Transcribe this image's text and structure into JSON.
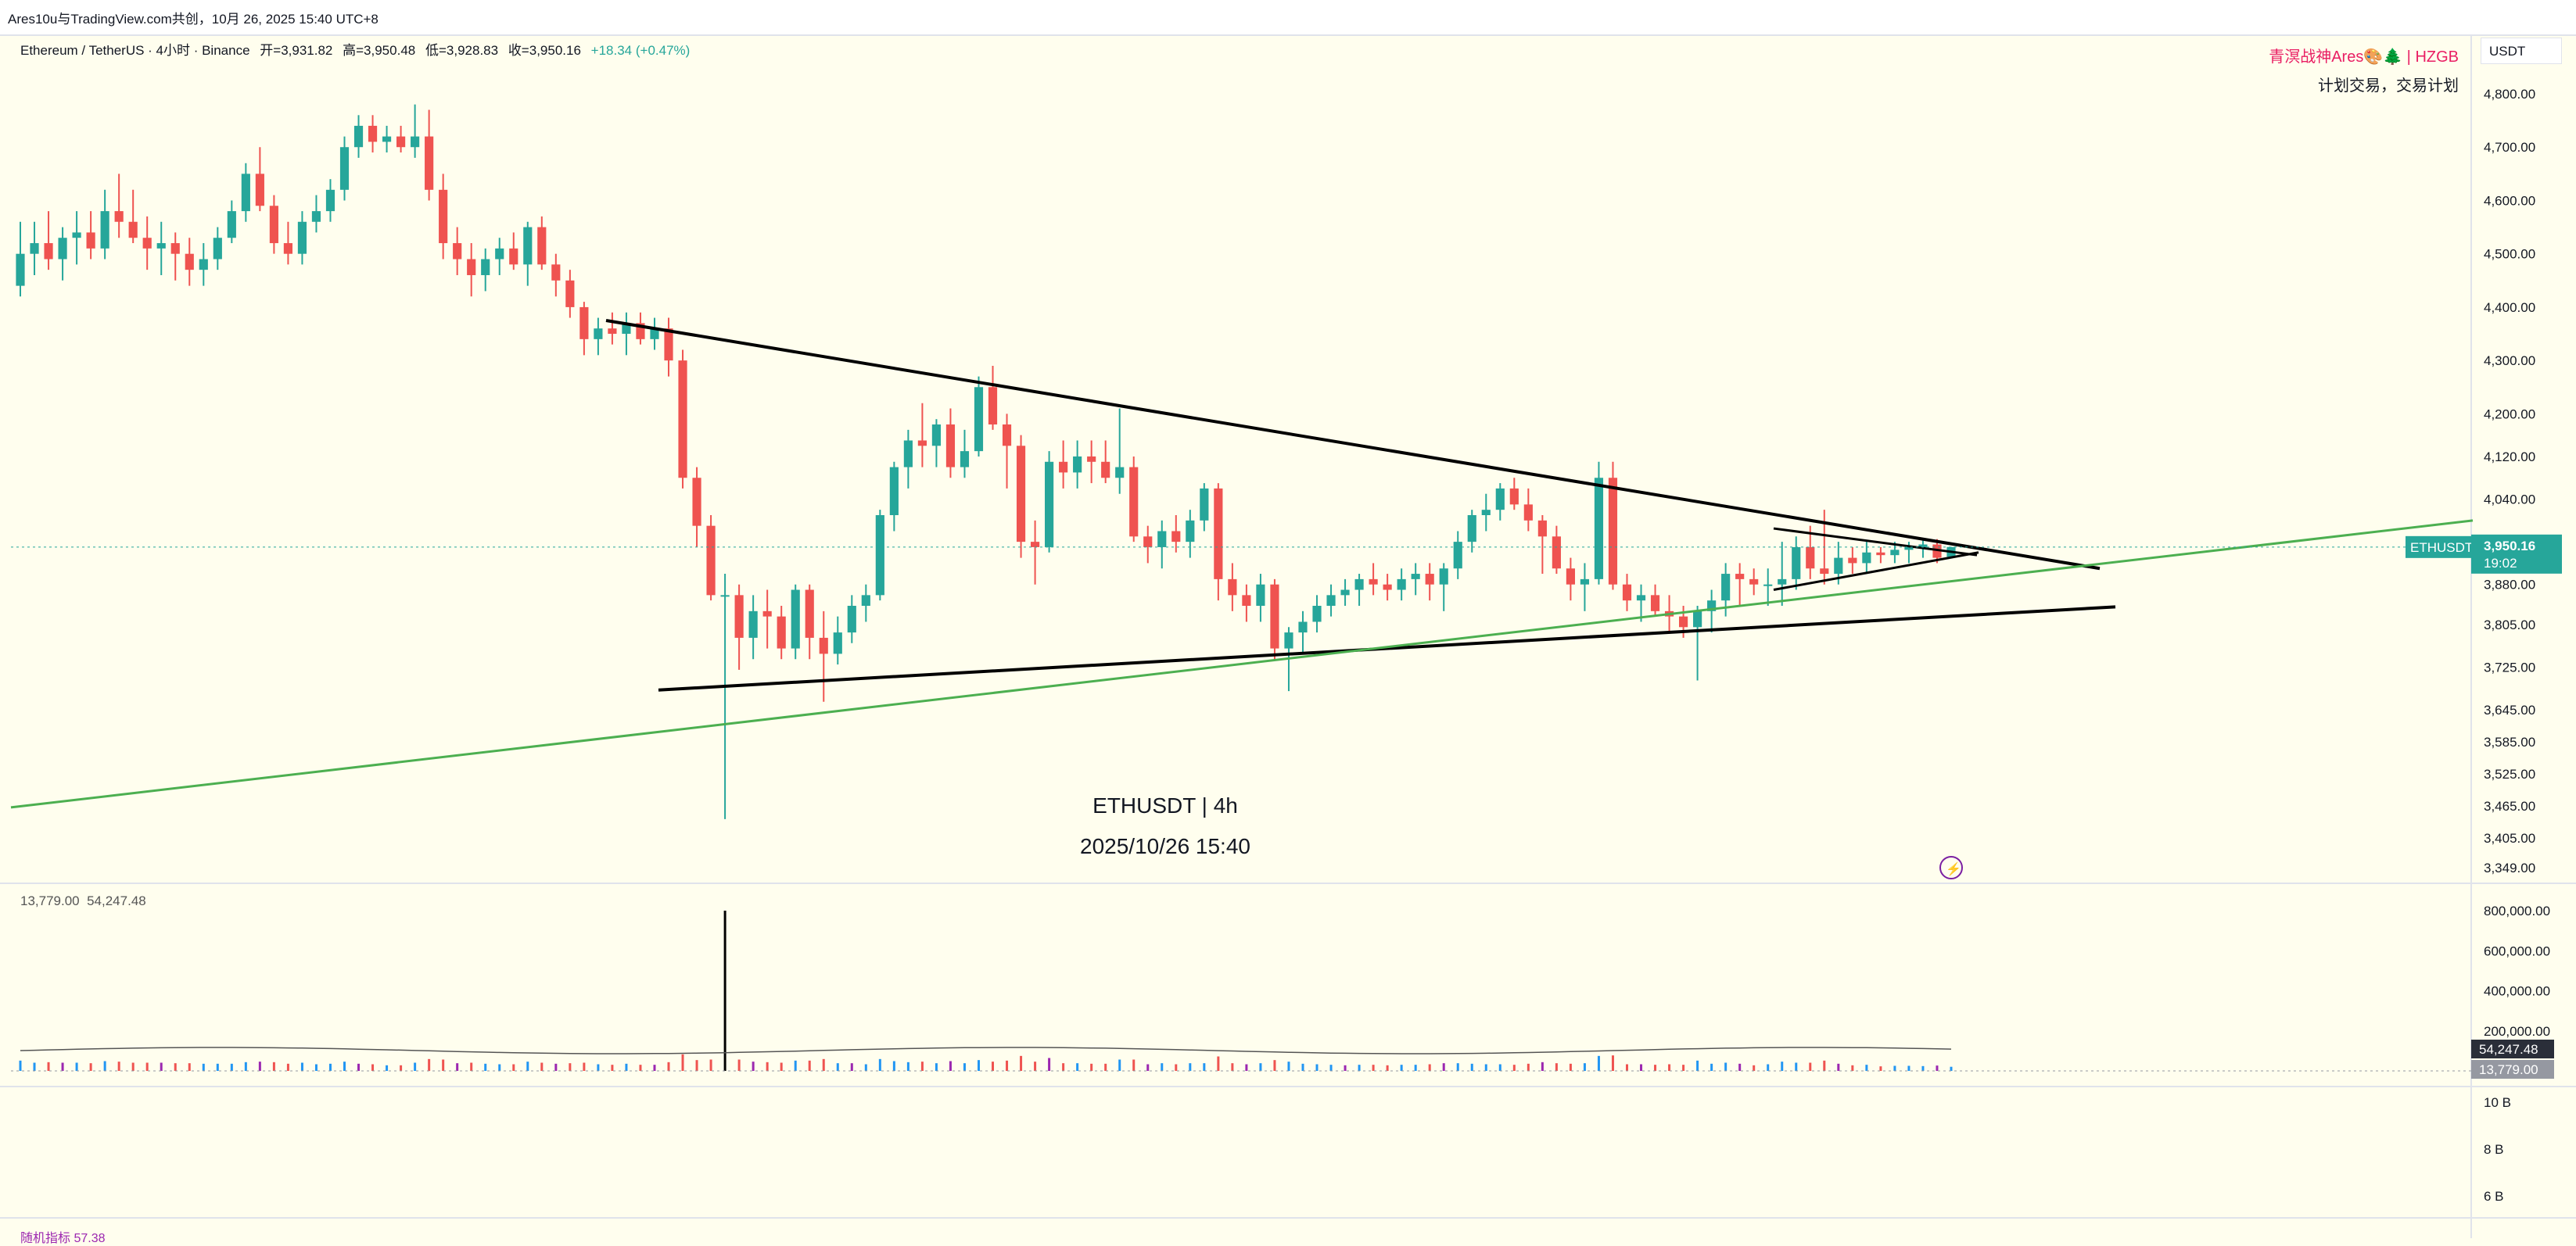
{
  "share_text": "Ares10u与TradingView.com共创，10月 26, 2025 15:40 UTC+8",
  "legend": {
    "symbol": "Ethereum / TetherUS · 4小时 · Binance",
    "open": "开=3,931.82",
    "high": "高=3,950.48",
    "low": "低=3,928.83",
    "close": "收=3,950.16",
    "change": "+18.34 (+0.47%)"
  },
  "badge": {
    "line1": "青溟战神Ares🎨🌲 | HZGB",
    "line2": "计划交易，交易计划"
  },
  "center": {
    "title": "ETHUSDT | 4h",
    "date": "2025/10/26 15:40"
  },
  "volume_legend": {
    "v1": "13,779.00",
    "v2": "54,247.48"
  },
  "bottom_legend": "随机指标 57.38",
  "price_axis": {
    "currency": "USDT",
    "ticks": [
      "4,800.00",
      "4,700.00",
      "4,600.00",
      "4,500.00",
      "4,400.00",
      "4,300.00",
      "4,200.00",
      "4,120.00",
      "4,040.00",
      "3,880.00",
      "3,805.00",
      "3,725.00",
      "3,645.00",
      "3,585.00",
      "3,525.00",
      "3,465.00",
      "3,405.00",
      "3,349.00"
    ],
    "last_symbol": "ETHUSDT",
    "last_price": "3,950.16",
    "countdown": "19:02"
  },
  "volume_axis": {
    "ticks": [
      "800,000.00",
      "600,000.00",
      "400,000.00",
      "200,000.00"
    ],
    "ma_value": "54,247.48",
    "last_value": "13,779.00"
  },
  "oscillator_axis": {
    "ticks": [
      "10 B",
      "8 B",
      "6 B"
    ]
  },
  "colors": {
    "up": "#26a69a",
    "down": "#ef5350",
    "trend_green": "#4caf50",
    "lines": "#000000",
    "bg": "#fffeee",
    "badge": "#e91e63"
  },
  "chart_data": {
    "type": "candlestick",
    "symbol": "ETHUSDT",
    "timeframe": "4h",
    "ylim": [
      3349,
      4850
    ],
    "candles": [
      [
        4440,
        4560,
        4420,
        4500
      ],
      [
        4500,
        4560,
        4460,
        4520
      ],
      [
        4520,
        4580,
        4470,
        4490
      ],
      [
        4490,
        4550,
        4450,
        4530
      ],
      [
        4530,
        4580,
        4480,
        4540
      ],
      [
        4540,
        4580,
        4490,
        4510
      ],
      [
        4510,
        4620,
        4490,
        4580
      ],
      [
        4580,
        4650,
        4530,
        4560
      ],
      [
        4560,
        4620,
        4520,
        4530
      ],
      [
        4530,
        4570,
        4470,
        4510
      ],
      [
        4510,
        4560,
        4460,
        4520
      ],
      [
        4520,
        4540,
        4450,
        4500
      ],
      [
        4500,
        4530,
        4440,
        4470
      ],
      [
        4470,
        4520,
        4440,
        4490
      ],
      [
        4490,
        4550,
        4470,
        4530
      ],
      [
        4530,
        4600,
        4520,
        4580
      ],
      [
        4580,
        4670,
        4560,
        4650
      ],
      [
        4650,
        4700,
        4580,
        4590
      ],
      [
        4590,
        4610,
        4500,
        4520
      ],
      [
        4520,
        4560,
        4480,
        4500
      ],
      [
        4500,
        4580,
        4480,
        4560
      ],
      [
        4560,
        4610,
        4540,
        4580
      ],
      [
        4580,
        4640,
        4560,
        4620
      ],
      [
        4620,
        4720,
        4600,
        4700
      ],
      [
        4700,
        4760,
        4680,
        4740
      ],
      [
        4740,
        4760,
        4690,
        4710
      ],
      [
        4710,
        4740,
        4690,
        4720
      ],
      [
        4720,
        4740,
        4690,
        4700
      ],
      [
        4700,
        4780,
        4680,
        4720
      ],
      [
        4720,
        4770,
        4600,
        4620
      ],
      [
        4620,
        4650,
        4490,
        4520
      ],
      [
        4520,
        4550,
        4460,
        4490
      ],
      [
        4490,
        4520,
        4420,
        4460
      ],
      [
        4460,
        4510,
        4430,
        4490
      ],
      [
        4490,
        4530,
        4460,
        4510
      ],
      [
        4510,
        4540,
        4470,
        4480
      ],
      [
        4480,
        4560,
        4440,
        4550
      ],
      [
        4550,
        4570,
        4470,
        4480
      ],
      [
        4480,
        4500,
        4420,
        4450
      ],
      [
        4450,
        4470,
        4380,
        4400
      ],
      [
        4400,
        4410,
        4310,
        4340
      ],
      [
        4340,
        4380,
        4310,
        4360
      ],
      [
        4360,
        4390,
        4330,
        4350
      ],
      [
        4350,
        4390,
        4310,
        4370
      ],
      [
        4370,
        4390,
        4330,
        4340
      ],
      [
        4340,
        4380,
        4320,
        4360
      ],
      [
        4360,
        4380,
        4270,
        4300
      ],
      [
        4300,
        4320,
        4060,
        4080
      ],
      [
        4080,
        4100,
        3950,
        3990
      ],
      [
        3990,
        4010,
        3850,
        3860
      ],
      [
        3860,
        3900,
        3440,
        3860
      ],
      [
        3860,
        3880,
        3720,
        3780
      ],
      [
        3780,
        3860,
        3740,
        3830
      ],
      [
        3830,
        3870,
        3760,
        3820
      ],
      [
        3820,
        3840,
        3740,
        3760
      ],
      [
        3760,
        3880,
        3740,
        3870
      ],
      [
        3870,
        3880,
        3740,
        3780
      ],
      [
        3780,
        3830,
        3660,
        3750
      ],
      [
        3750,
        3820,
        3730,
        3790
      ],
      [
        3790,
        3860,
        3770,
        3840
      ],
      [
        3840,
        3880,
        3810,
        3860
      ],
      [
        3860,
        4020,
        3850,
        4010
      ],
      [
        4010,
        4110,
        3980,
        4100
      ],
      [
        4100,
        4170,
        4060,
        4150
      ],
      [
        4150,
        4220,
        4100,
        4140
      ],
      [
        4140,
        4190,
        4100,
        4180
      ],
      [
        4180,
        4210,
        4080,
        4100
      ],
      [
        4100,
        4170,
        4080,
        4130
      ],
      [
        4130,
        4270,
        4120,
        4250
      ],
      [
        4250,
        4290,
        4170,
        4180
      ],
      [
        4180,
        4200,
        4060,
        4140
      ],
      [
        4140,
        4160,
        3930,
        3960
      ],
      [
        3960,
        4000,
        3880,
        3950
      ],
      [
        3950,
        4130,
        3940,
        4110
      ],
      [
        4110,
        4150,
        4060,
        4090
      ],
      [
        4090,
        4150,
        4060,
        4120
      ],
      [
        4120,
        4150,
        4070,
        4110
      ],
      [
        4110,
        4150,
        4070,
        4080
      ],
      [
        4080,
        4210,
        4050,
        4100
      ],
      [
        4100,
        4120,
        3960,
        3970
      ],
      [
        3970,
        3990,
        3920,
        3950
      ],
      [
        3950,
        4000,
        3910,
        3980
      ],
      [
        3980,
        4010,
        3940,
        3960
      ],
      [
        3960,
        4020,
        3930,
        4000
      ],
      [
        4000,
        4070,
        3980,
        4060
      ],
      [
        4060,
        4070,
        3850,
        3890
      ],
      [
        3890,
        3920,
        3830,
        3860
      ],
      [
        3860,
        3880,
        3810,
        3840
      ],
      [
        3840,
        3900,
        3810,
        3880
      ],
      [
        3880,
        3890,
        3740,
        3760
      ],
      [
        3760,
        3800,
        3680,
        3790
      ],
      [
        3790,
        3830,
        3750,
        3810
      ],
      [
        3810,
        3860,
        3790,
        3840
      ],
      [
        3840,
        3880,
        3820,
        3860
      ],
      [
        3860,
        3890,
        3840,
        3870
      ],
      [
        3870,
        3900,
        3840,
        3890
      ],
      [
        3890,
        3920,
        3860,
        3880
      ],
      [
        3880,
        3900,
        3850,
        3870
      ],
      [
        3870,
        3910,
        3850,
        3890
      ],
      [
        3890,
        3920,
        3860,
        3900
      ],
      [
        3900,
        3920,
        3850,
        3880
      ],
      [
        3880,
        3920,
        3830,
        3910
      ],
      [
        3910,
        3980,
        3890,
        3960
      ],
      [
        3960,
        4020,
        3940,
        4010
      ],
      [
        4010,
        4050,
        3980,
        4020
      ],
      [
        4020,
        4070,
        4000,
        4060
      ],
      [
        4060,
        4080,
        4020,
        4030
      ],
      [
        4030,
        4060,
        3980,
        4000
      ],
      [
        4000,
        4010,
        3900,
        3970
      ],
      [
        3970,
        3990,
        3900,
        3910
      ],
      [
        3910,
        3930,
        3850,
        3880
      ],
      [
        3880,
        3920,
        3830,
        3890
      ],
      [
        3890,
        4110,
        3880,
        4080
      ],
      [
        4080,
        4110,
        3870,
        3880
      ],
      [
        3880,
        3900,
        3830,
        3850
      ],
      [
        3850,
        3880,
        3810,
        3860
      ],
      [
        3860,
        3880,
        3820,
        3830
      ],
      [
        3830,
        3860,
        3790,
        3820
      ],
      [
        3820,
        3840,
        3780,
        3800
      ],
      [
        3800,
        3840,
        3700,
        3830
      ],
      [
        3830,
        3870,
        3790,
        3850
      ],
      [
        3850,
        3920,
        3820,
        3900
      ],
      [
        3900,
        3920,
        3840,
        3890
      ],
      [
        3890,
        3910,
        3860,
        3880
      ],
      [
        3880,
        3910,
        3840,
        3880
      ],
      [
        3880,
        3960,
        3840,
        3890
      ],
      [
        3890,
        3970,
        3870,
        3950
      ],
      [
        3950,
        3990,
        3890,
        3910
      ],
      [
        3910,
        4020,
        3880,
        3900
      ],
      [
        3900,
        3960,
        3880,
        3930
      ],
      [
        3930,
        3950,
        3900,
        3920
      ],
      [
        3920,
        3960,
        3900,
        3940
      ],
      [
        3940,
        3950,
        3920,
        3935
      ],
      [
        3935,
        3960,
        3920,
        3945
      ],
      [
        3945,
        3960,
        3920,
        3950
      ],
      [
        3950,
        3965,
        3930,
        3955
      ],
      [
        3955,
        3965,
        3920,
        3930
      ],
      [
        3931.82,
        3950.48,
        3928.83,
        3950.16
      ]
    ],
    "lines": [
      {
        "kind": "descending-resistance",
        "from_price": 4375,
        "to_price": 3910
      },
      {
        "kind": "ascending-support",
        "from_price": 3682,
        "to_price": 3838
      },
      {
        "kind": "green-uptrend",
        "from_price": 3462,
        "to_price": 4000
      },
      {
        "kind": "small-triangle-top",
        "from_price": 3985,
        "to_price": 3935
      },
      {
        "kind": "small-triangle-bottom",
        "from_price": 3870,
        "to_price": 3940
      }
    ]
  }
}
